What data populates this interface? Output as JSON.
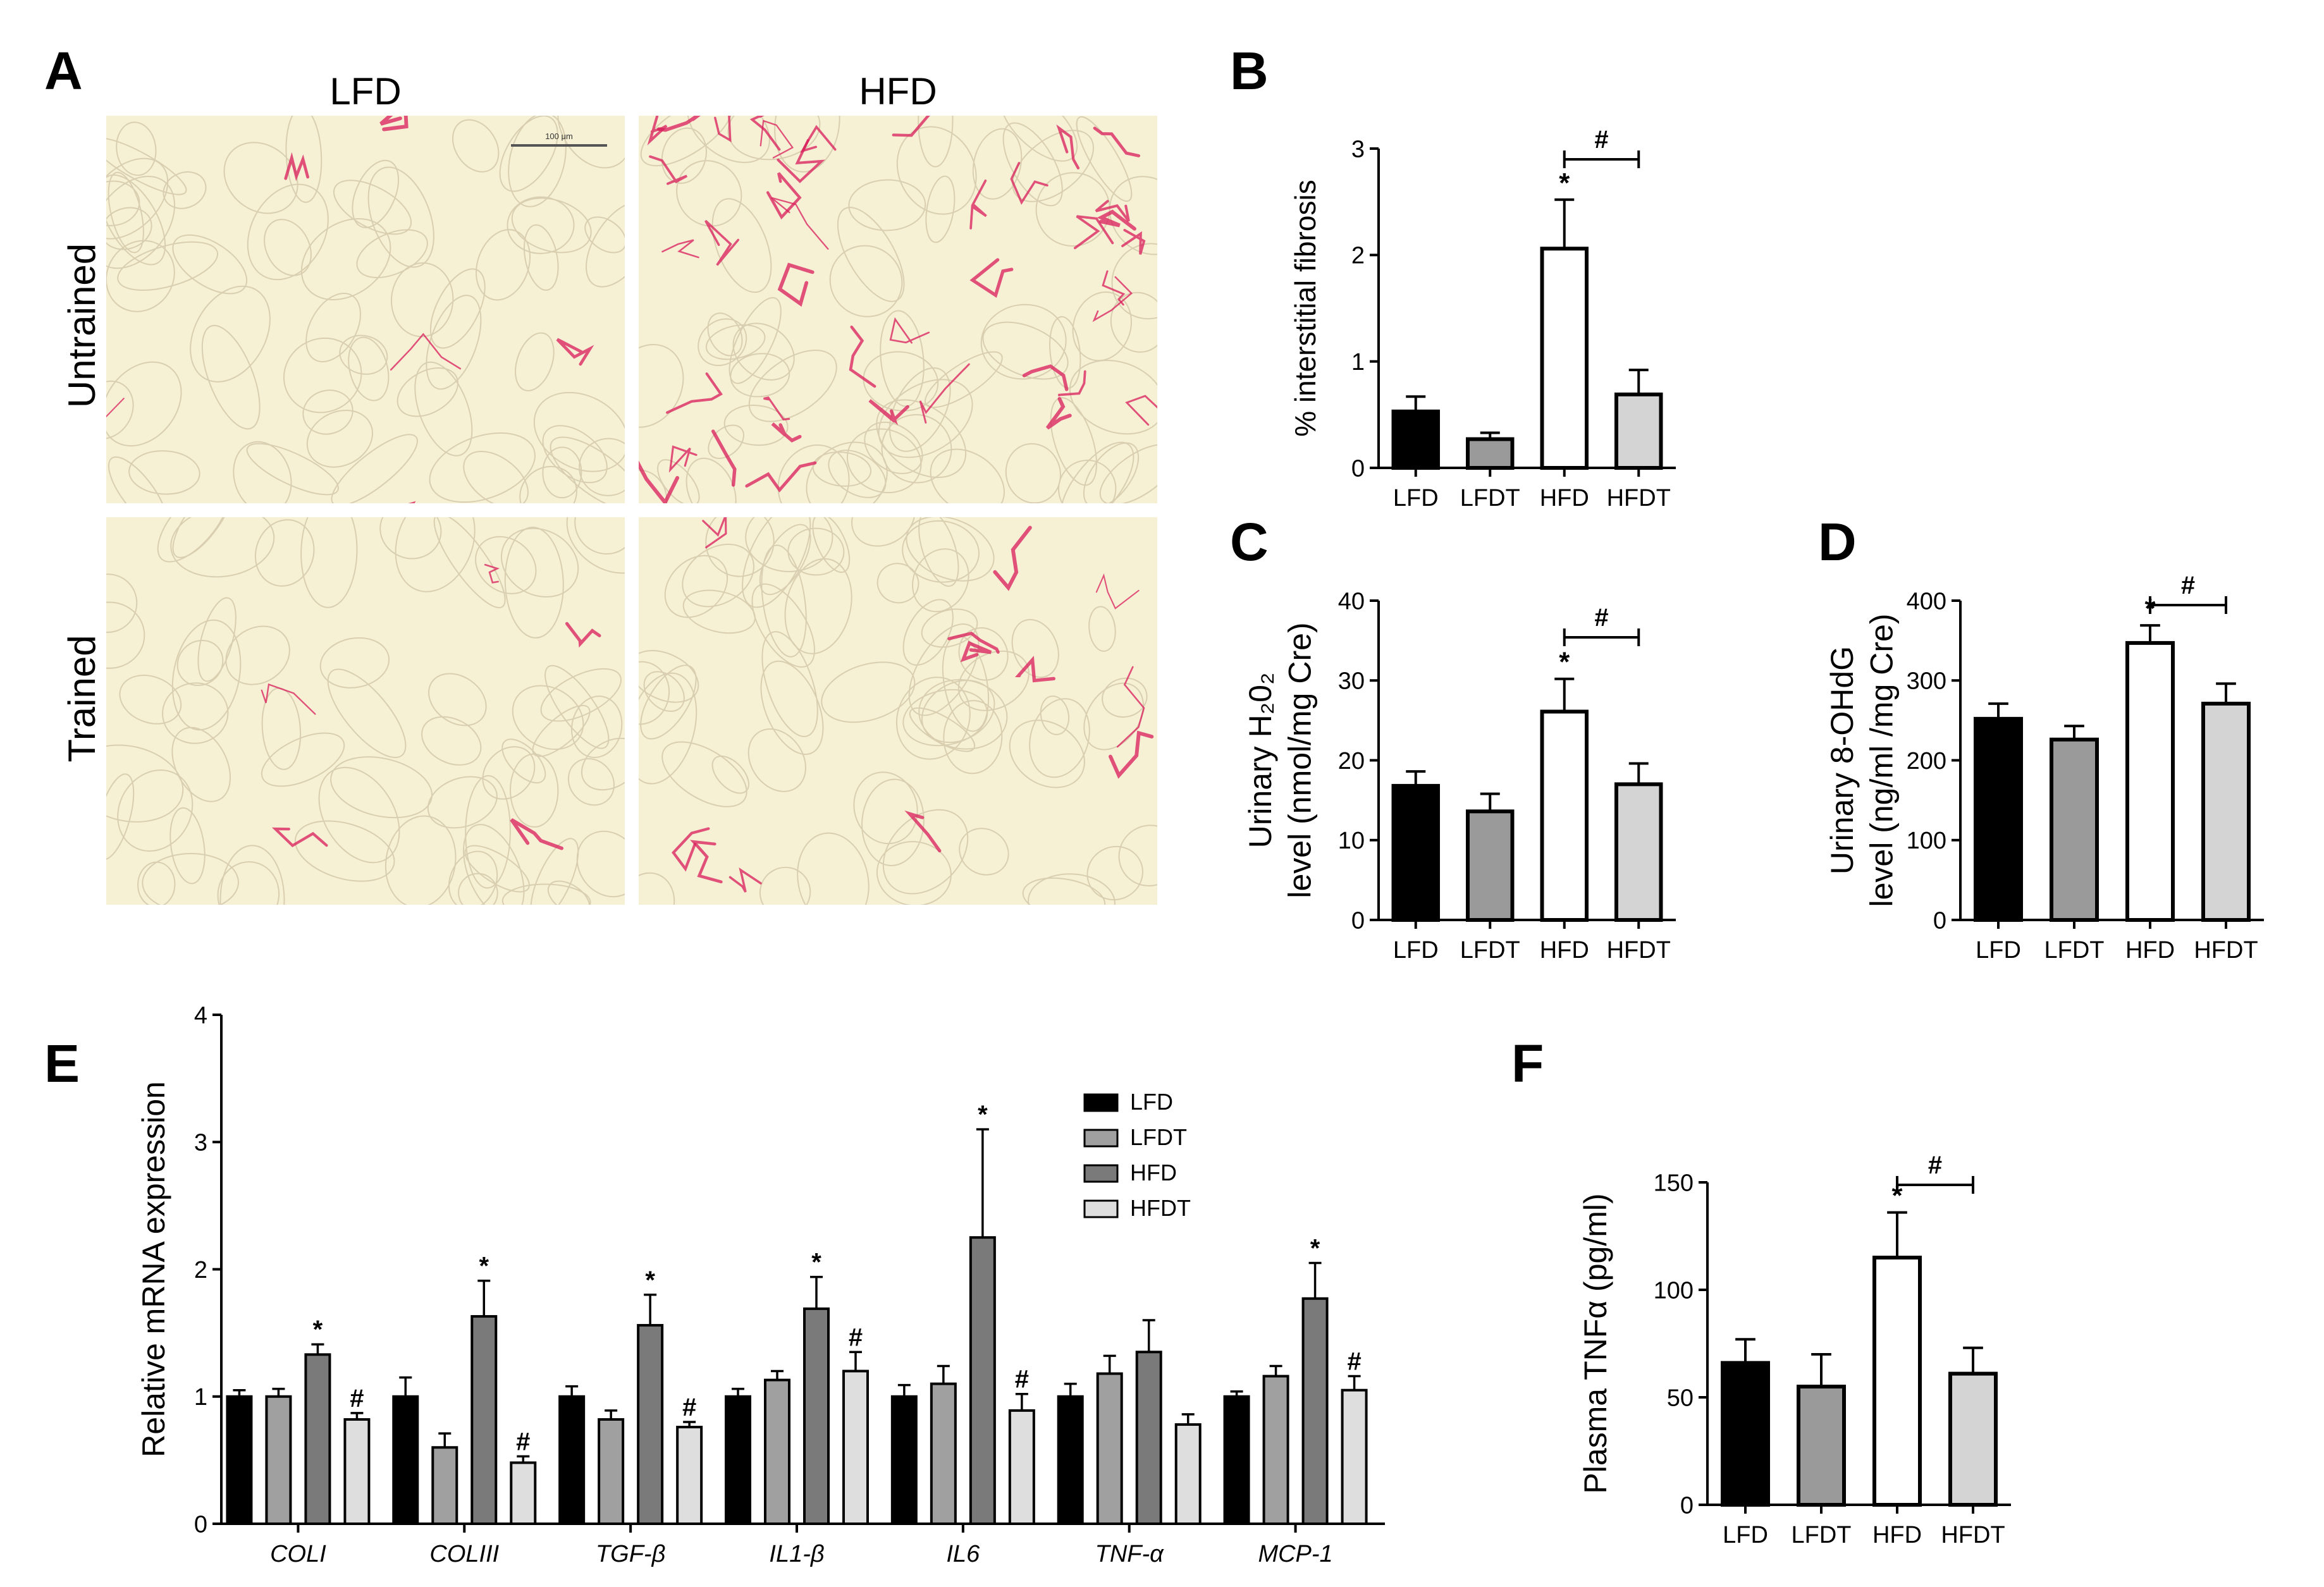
{
  "panels": {
    "A": {
      "letter": "A",
      "columns": [
        "LFD",
        "HFD"
      ],
      "rows": [
        "Untrained",
        "Trained"
      ],
      "scale_bar_label": "100 μm",
      "tissue_color": "#f6f0d4",
      "stain_color": "#d81b5a"
    },
    "B": {
      "letter": "B"
    },
    "C": {
      "letter": "C"
    },
    "D": {
      "letter": "D"
    },
    "E": {
      "letter": "E"
    },
    "F": {
      "letter": "F"
    }
  },
  "colors": {
    "LFD": "#000000",
    "LFDT": "#9a9a9a",
    "HFD": "#ffffff",
    "HFDT": "#d4d4d4",
    "E_LFD": "#000000",
    "E_LFDT": "#a0a0a0",
    "E_HFD": "#7a7a7a",
    "E_HFDT": "#dedede"
  },
  "chart_data": [
    {
      "id": "B",
      "type": "bar",
      "categories": [
        "LFD",
        "LFDT",
        "HFD",
        "HFDT"
      ],
      "values": [
        0.53,
        0.27,
        2.06,
        0.69
      ],
      "errors": [
        0.14,
        0.06,
        0.46,
        0.23
      ],
      "ylabel": "% interstitial fibrosis",
      "ylim": [
        0,
        3
      ],
      "yticks": [
        0,
        1,
        2,
        3
      ],
      "star_on": [
        "HFD"
      ],
      "hash_bracket": {
        "from": "HFD",
        "to": "HFDT",
        "label": "#"
      },
      "star_label": "*"
    },
    {
      "id": "C",
      "type": "bar",
      "categories": [
        "LFD",
        "LFDT",
        "HFD",
        "HFDT"
      ],
      "values": [
        16.8,
        13.6,
        26.1,
        17.0
      ],
      "errors": [
        1.8,
        2.2,
        4.1,
        2.6
      ],
      "ylabel": "Urinary H₂0₂",
      "ylabel2": "level (nmol/mg Cre)",
      "ylim": [
        0,
        40
      ],
      "yticks": [
        0,
        10,
        20,
        30,
        40
      ],
      "star_on": [
        "HFD"
      ],
      "hash_bracket": {
        "from": "HFD",
        "to": "HFDT",
        "label": "#"
      },
      "star_label": "*"
    },
    {
      "id": "D",
      "type": "bar",
      "categories": [
        "LFD",
        "LFDT",
        "HFD",
        "HFDT"
      ],
      "values": [
        252,
        226,
        347,
        271
      ],
      "errors": [
        19,
        17,
        22,
        25
      ],
      "ylabel": "Urinary 8-OHdG",
      "ylabel2": "level (ng/ml /mg Cre)",
      "ylim": [
        0,
        400
      ],
      "yticks": [
        0,
        100,
        200,
        300,
        400
      ],
      "star_on": [
        "HFD"
      ],
      "hash_bracket": {
        "from": "HFD",
        "to": "HFDT",
        "label": "#"
      },
      "star_label": "*"
    },
    {
      "id": "E",
      "type": "bar",
      "categories": [
        "COLI",
        "COLIII",
        "TGF-β",
        "IL1-β",
        "IL6",
        "TNF-α",
        "MCP-1"
      ],
      "series": [
        {
          "name": "LFD",
          "values": [
            1.0,
            1.0,
            1.0,
            1.0,
            1.0,
            1.0,
            1.0
          ],
          "errors": [
            0.05,
            0.15,
            0.08,
            0.06,
            0.09,
            0.1,
            0.04
          ]
        },
        {
          "name": "LFDT",
          "values": [
            1.0,
            0.6,
            0.82,
            1.13,
            1.1,
            1.18,
            1.16
          ],
          "errors": [
            0.06,
            0.11,
            0.07,
            0.07,
            0.14,
            0.14,
            0.08
          ]
        },
        {
          "name": "HFD",
          "values": [
            1.33,
            1.63,
            1.56,
            1.69,
            2.25,
            1.35,
            1.77
          ],
          "errors": [
            0.08,
            0.28,
            0.24,
            0.25,
            0.85,
            0.25,
            0.28
          ]
        },
        {
          "name": "HFDT",
          "values": [
            0.82,
            0.48,
            0.76,
            1.2,
            0.89,
            0.78,
            1.05
          ],
          "errors": [
            0.05,
            0.05,
            0.04,
            0.15,
            0.13,
            0.08,
            0.11
          ]
        }
      ],
      "ylabel": "Relative mRNA expression",
      "ylim": [
        0,
        4
      ],
      "yticks": [
        0,
        1,
        2,
        3,
        4
      ],
      "stars": [
        [
          0,
          2,
          "*"
        ],
        [
          0,
          3,
          "#"
        ],
        [
          1,
          2,
          "*"
        ],
        [
          1,
          3,
          "#"
        ],
        [
          2,
          2,
          "*"
        ],
        [
          2,
          3,
          "#"
        ],
        [
          3,
          2,
          "*"
        ],
        [
          3,
          3,
          "#"
        ],
        [
          4,
          2,
          "*"
        ],
        [
          4,
          3,
          "#"
        ],
        [
          6,
          2,
          "*"
        ],
        [
          6,
          3,
          "#"
        ]
      ],
      "legend": [
        "LFD",
        "LFDT",
        "HFD",
        "HFDT"
      ]
    },
    {
      "id": "F",
      "type": "bar",
      "categories": [
        "LFD",
        "LFDT",
        "HFD",
        "HFDT"
      ],
      "values": [
        66,
        55,
        115,
        61
      ],
      "errors": [
        11,
        15,
        21,
        12
      ],
      "ylabel": "Plasma TNFα (pg/ml)",
      "ylim": [
        0,
        150
      ],
      "yticks": [
        0,
        50,
        100,
        150
      ],
      "star_on": [
        "HFD"
      ],
      "hash_bracket": {
        "from": "HFD",
        "to": "HFDT",
        "label": "#"
      },
      "star_label": "*"
    }
  ]
}
